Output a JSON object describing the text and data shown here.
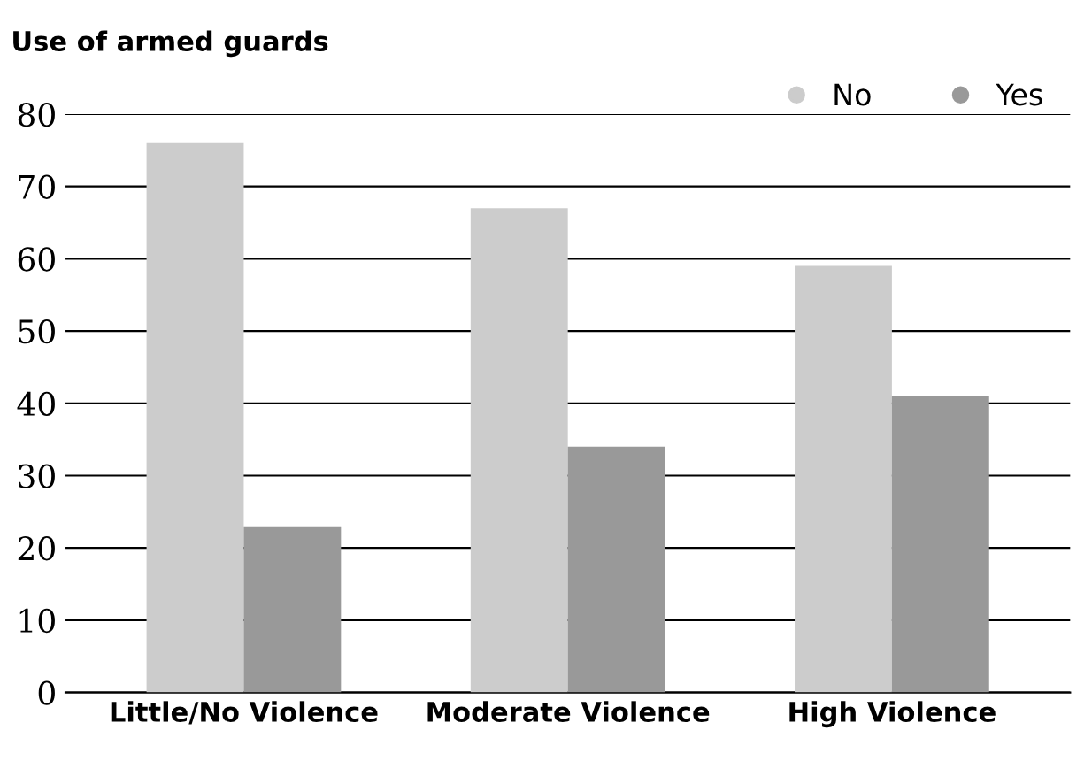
{
  "chart_data": {
    "type": "bar",
    "title": "Use of armed guards",
    "categories": [
      "Little/No Violence",
      "Moderate Violence",
      "High Violence"
    ],
    "series": [
      {
        "name": "No",
        "color": "#cccccc",
        "values": [
          76,
          67,
          59
        ]
      },
      {
        "name": "Yes",
        "color": "#999999",
        "values": [
          23,
          34,
          41
        ]
      }
    ],
    "ylim": [
      0,
      80
    ],
    "yticks": [
      0,
      10,
      20,
      30,
      40,
      50,
      60,
      70,
      80
    ],
    "grid": "y",
    "legend": "top right"
  }
}
